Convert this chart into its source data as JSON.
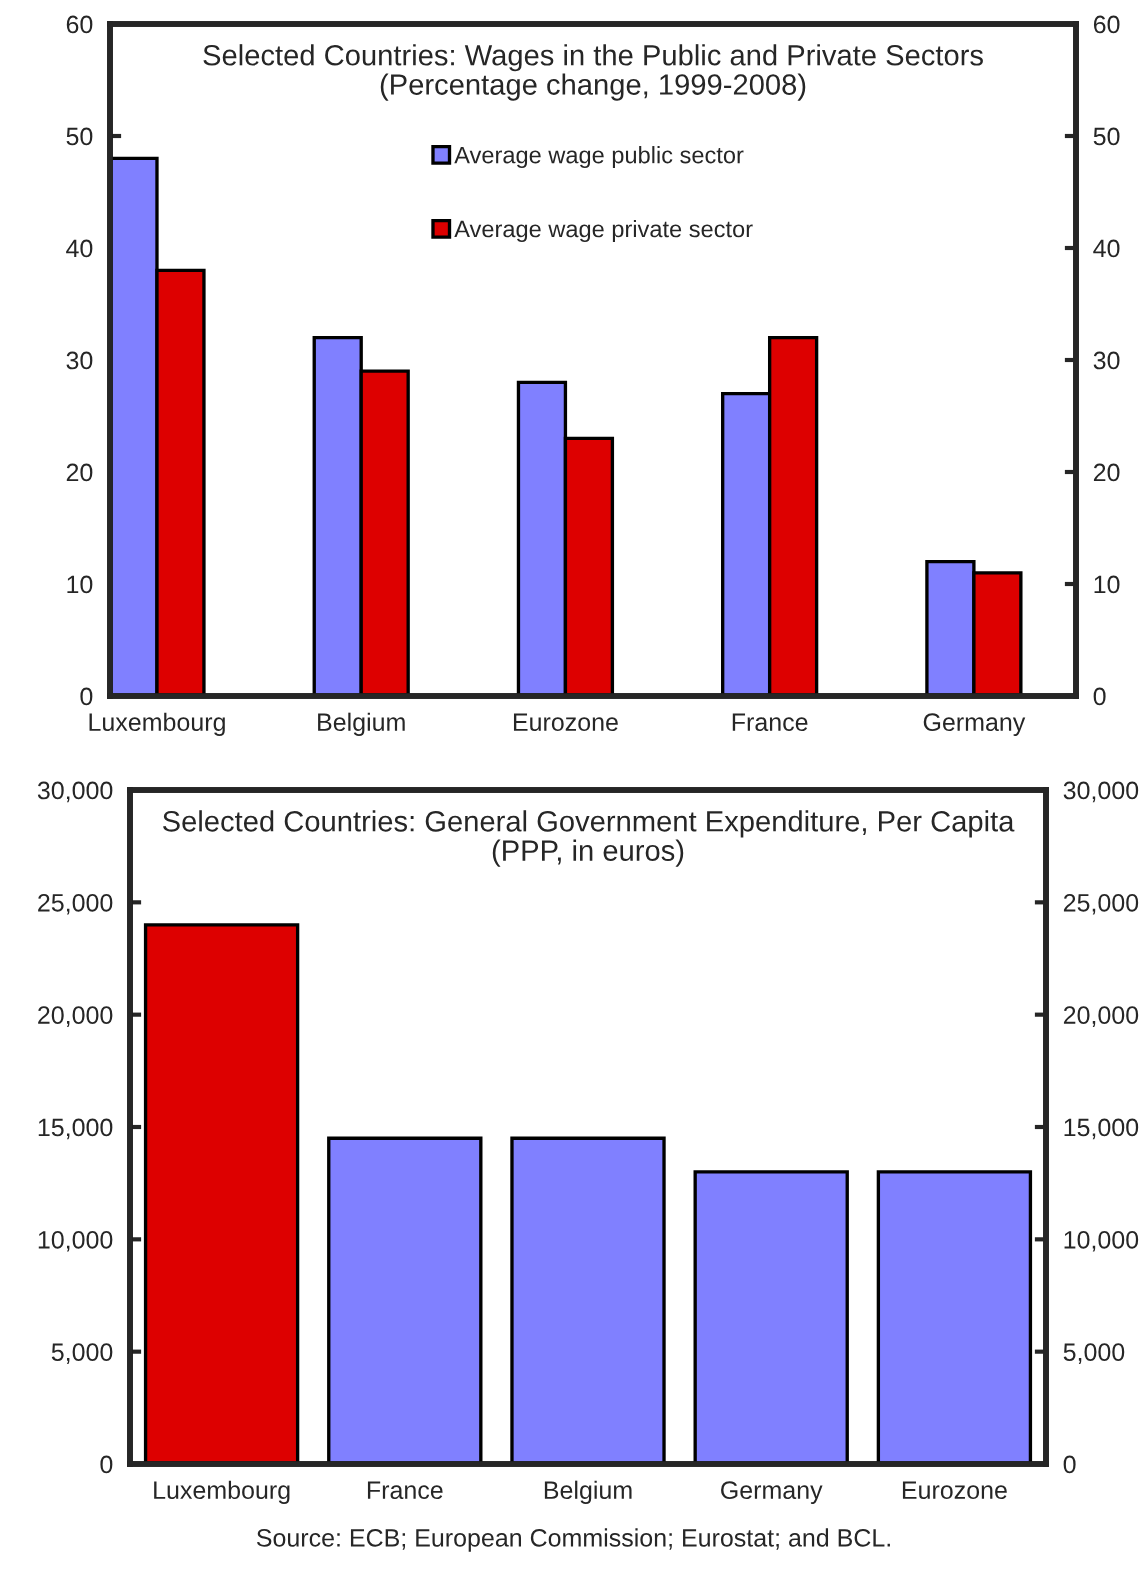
{
  "chart_data": [
    {
      "type": "bar",
      "title": "Selected Countries: Wages in the Public and Private Sectors\n(Percentage change, 1999-2008)",
      "categories": [
        "Luxembourg",
        "Belgium",
        "Eurozone",
        "France",
        "Germany"
      ],
      "series": [
        {
          "name": "Average wage public sector",
          "color": "#8080ff",
          "values": [
            48,
            32,
            28,
            27,
            12
          ]
        },
        {
          "name": "Average wage private sector",
          "color": "#dd0000",
          "values": [
            38,
            29,
            23,
            32,
            11
          ]
        }
      ],
      "ylim": [
        0,
        60
      ],
      "yticks": [
        0,
        10,
        20,
        30,
        40,
        50,
        60
      ],
      "y2lim": [
        0,
        60
      ],
      "y2ticks": [
        0,
        10,
        20,
        30,
        40,
        50,
        60
      ],
      "grid": false,
      "legend": "top"
    },
    {
      "type": "bar",
      "title": "Selected Countries: General Government Expenditure, Per Capita\n(PPP, in euros)",
      "categories": [
        "Luxembourg",
        "France",
        "Belgium",
        "Germany",
        "Eurozone"
      ],
      "values": [
        24000,
        14500,
        14500,
        13000,
        13000
      ],
      "colors": [
        "#dd0000",
        "#8080ff",
        "#8080ff",
        "#8080ff",
        "#8080ff"
      ],
      "ylim": [
        0,
        30000
      ],
      "yticks": [
        {
          "value": 0,
          "label": "0"
        },
        {
          "value": 5000,
          "label": "5,000"
        },
        {
          "value": 10000,
          "label": "10,000"
        },
        {
          "value": 15000,
          "label": "15,000"
        },
        {
          "value": 20000,
          "label": "20,000"
        },
        {
          "value": 25000,
          "label": "25,000"
        },
        {
          "value": 30000,
          "label": "30,000"
        }
      ],
      "y2lim": [
        0,
        30000
      ],
      "y2ticks": [
        {
          "value": 0,
          "label": "0"
        },
        {
          "value": 5000,
          "label": "5,000"
        },
        {
          "value": 10000,
          "label": "10,000"
        },
        {
          "value": 15000,
          "label": "15,000"
        },
        {
          "value": 20000,
          "label": "20,000"
        },
        {
          "value": 25000,
          "label": "25,000"
        },
        {
          "value": 30000,
          "label": "30,000"
        }
      ],
      "grid": false,
      "annotations": [
        "Source: ECB; European Commission; Eurostat; and BCL."
      ]
    }
  ]
}
